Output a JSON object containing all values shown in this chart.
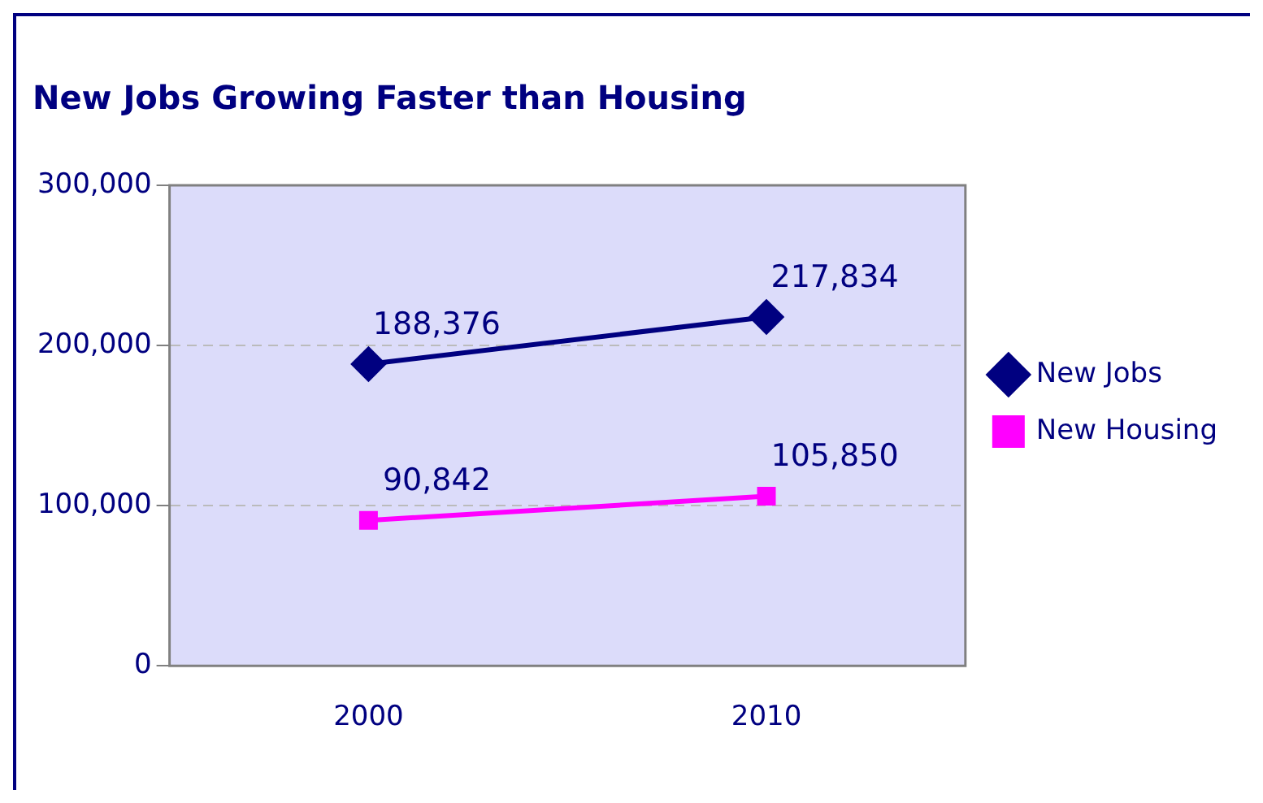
{
  "chart_data": {
    "type": "line",
    "title": "New Jobs Growing Faster than Housing",
    "categories": [
      "2000",
      "2010"
    ],
    "series": [
      {
        "name": "New Jobs",
        "color": "#000080",
        "values": [
          188376,
          217834
        ],
        "value_labels": [
          "188,376",
          "217,834"
        ],
        "marker": "diamond"
      },
      {
        "name": "New Housing",
        "color": "#ff00ff",
        "values": [
          90842,
          105850
        ],
        "value_labels": [
          "90,842",
          "105,850"
        ],
        "marker": "square"
      }
    ],
    "ylim": [
      0,
      300000
    ],
    "yticks": [
      {
        "value": 0,
        "label": "0"
      },
      {
        "value": 100000,
        "label": "100,000"
      },
      {
        "value": 200000,
        "label": "200,000"
      },
      {
        "value": 300000,
        "label": "300,000"
      }
    ],
    "grid": "y",
    "legend": "right",
    "line_style": "solid"
  }
}
